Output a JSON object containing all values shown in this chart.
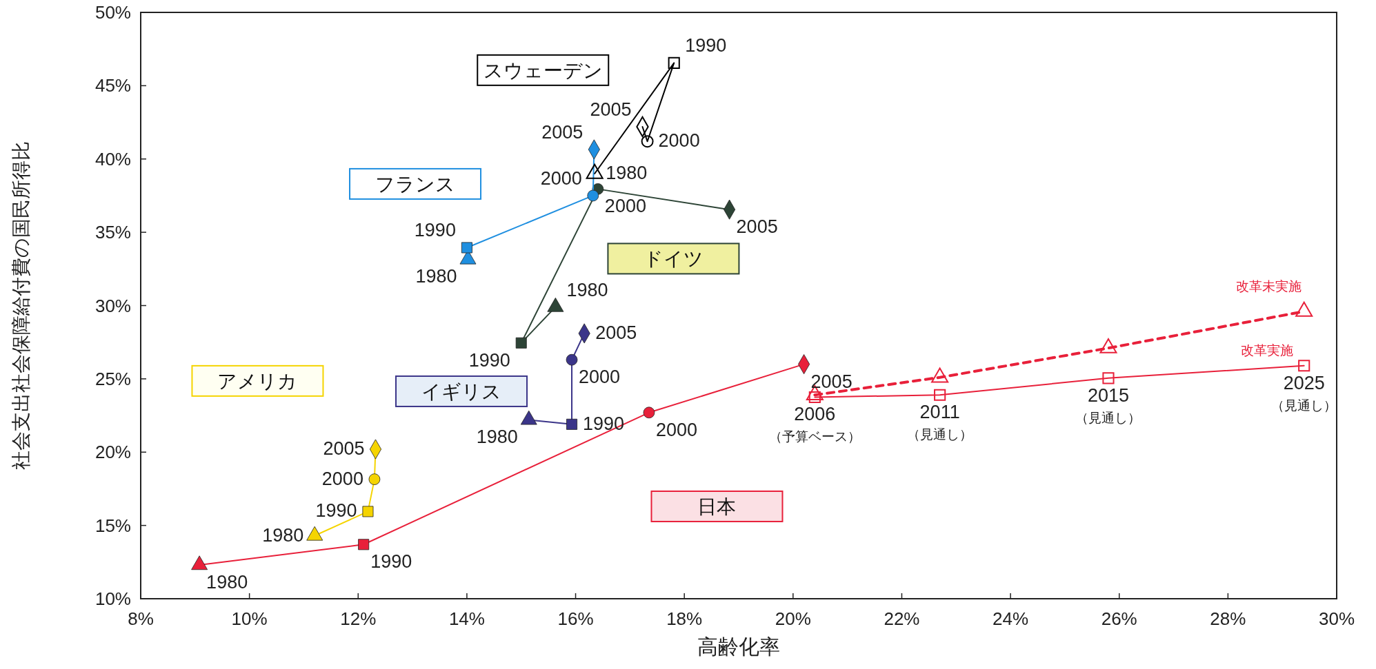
{
  "chart_data": {
    "type": "line",
    "xlabel": "高齢化率",
    "ylabel": "社会支出社会保障給付費の国民所得比",
    "xlim": [
      8,
      30
    ],
    "ylim": [
      10,
      50
    ],
    "xticks": [
      {
        "value": 8,
        "label": "8%"
      },
      {
        "value": 10,
        "label": "10%"
      },
      {
        "value": 12,
        "label": "12%"
      },
      {
        "value": 14,
        "label": "14%"
      },
      {
        "value": 16,
        "label": "16%"
      },
      {
        "value": 18,
        "label": "18%"
      },
      {
        "value": 20,
        "label": "20%"
      },
      {
        "value": 22,
        "label": "22%"
      },
      {
        "value": 24,
        "label": "24%"
      },
      {
        "value": 26,
        "label": "26%"
      },
      {
        "value": 28,
        "label": "28%"
      },
      {
        "value": 30,
        "label": "30%"
      }
    ],
    "yticks": [
      {
        "value": 10,
        "label": "10%"
      },
      {
        "value": 15,
        "label": "15%"
      },
      {
        "value": 20,
        "label": "20%"
      },
      {
        "value": 25,
        "label": "25%"
      },
      {
        "value": 30,
        "label": "30%"
      },
      {
        "value": 35,
        "label": "35%"
      },
      {
        "value": 40,
        "label": "40%"
      },
      {
        "value": 45,
        "label": "45%"
      },
      {
        "value": 50,
        "label": "50%"
      }
    ],
    "grid": false,
    "line_style": "solid",
    "series": [
      {
        "name": "日本",
        "color": "#e8203a",
        "x": [
          9.08,
          12.1,
          17.35,
          20.2
        ],
        "values": [
          12.3,
          13.7,
          22.7,
          26.0
        ],
        "marker": [
          "triangle",
          "square",
          "circle",
          "diamond"
        ]
      },
      {
        "name": "アメリカ",
        "color": "#f5d400",
        "x": [
          11.2,
          12.18,
          12.3,
          12.32
        ],
        "values": [
          14.3,
          15.95,
          18.15,
          20.2
        ],
        "marker": [
          "triangle",
          "square",
          "circle",
          "diamond"
        ]
      },
      {
        "name": "イギリス",
        "color": "#3b3589",
        "x": [
          15.14,
          15.93,
          15.93,
          16.16
        ],
        "values": [
          22.2,
          21.9,
          26.3,
          28.1
        ],
        "marker": [
          "triangle",
          "square",
          "circle",
          "diamond"
        ]
      },
      {
        "name": "ドイツ",
        "color": "#2d4436",
        "x": [
          15.63,
          15.0,
          16.41,
          18.83
        ],
        "values": [
          29.9,
          27.45,
          37.95,
          36.55
        ],
        "marker": [
          "triangle",
          "square",
          "circle",
          "diamond"
        ]
      },
      {
        "name": "フランス",
        "color": "#1f8fe0",
        "x": [
          14.02,
          14.0,
          16.32,
          16.34
        ],
        "values": [
          33.15,
          33.95,
          37.5,
          40.65
        ],
        "marker": [
          "triangle",
          "square",
          "circle",
          "diamond"
        ]
      },
      {
        "name": "スウェーデン",
        "color": "#000000",
        "x": [
          16.35,
          17.81,
          17.32,
          17.23
        ],
        "values": [
          39.0,
          46.55,
          41.2,
          42.2
        ],
        "marker": [
          "triangle",
          "square",
          "circle",
          "diamond"
        ]
      },
      {
        "name": "改革実施",
        "color": "#e8203a",
        "x": [
          20.4,
          22.7,
          25.8,
          29.4
        ],
        "values": [
          23.75,
          23.9,
          25.05,
          25.9
        ],
        "marker": "square"
      },
      {
        "name": "改革未実施",
        "color": "#e8203a",
        "x": [
          20.4,
          22.7,
          25.8,
          29.4
        ],
        "values": [
          23.9,
          25.1,
          27.1,
          29.6
        ],
        "marker": "triangle",
        "line_style": "dashed"
      }
    ],
    "annotations": [
      {
        "text": "1980",
        "x": 9.08,
        "y": 12.3
      },
      {
        "text": "1990",
        "x": 12.1,
        "y": 13.7
      },
      {
        "text": "2000",
        "x": 17.35,
        "y": 22.7
      },
      {
        "text": "2005",
        "x": 20.2,
        "y": 26.0
      },
      {
        "text": "1980",
        "x": 11.2,
        "y": 14.3
      },
      {
        "text": "1990",
        "x": 12.18,
        "y": 15.95
      },
      {
        "text": "2000",
        "x": 12.3,
        "y": 18.15
      },
      {
        "text": "2005",
        "x": 12.32,
        "y": 20.2
      },
      {
        "text": "1980",
        "x": 15.14,
        "y": 22.2
      },
      {
        "text": "1990",
        "x": 15.93,
        "y": 21.9
      },
      {
        "text": "2000",
        "x": 15.93,
        "y": 26.3
      },
      {
        "text": "2005",
        "x": 16.16,
        "y": 28.1
      },
      {
        "text": "1980",
        "x": 15.63,
        "y": 29.9
      },
      {
        "text": "1990",
        "x": 15.0,
        "y": 27.45
      },
      {
        "text": "2000",
        "x": 16.41,
        "y": 37.95
      },
      {
        "text": "2005",
        "x": 18.83,
        "y": 36.55
      },
      {
        "text": "1980",
        "x": 14.02,
        "y": 33.15
      },
      {
        "text": "1990",
        "x": 14.0,
        "y": 33.95
      },
      {
        "text": "2000",
        "x": 16.32,
        "y": 37.5
      },
      {
        "text": "2005",
        "x": 16.34,
        "y": 40.65
      },
      {
        "text": "1980",
        "x": 16.35,
        "y": 39.0
      },
      {
        "text": "1990",
        "x": 17.81,
        "y": 46.55
      },
      {
        "text": "2000",
        "x": 17.32,
        "y": 41.2
      },
      {
        "text": "2005",
        "x": 17.23,
        "y": 42.2
      },
      {
        "text": "2006\n（予算ベース）",
        "x": 20.4,
        "y": 23.75
      },
      {
        "text": "2011\n（見通し）",
        "x": 22.7,
        "y": 23.9
      },
      {
        "text": "2015\n（見通し）",
        "x": 25.8,
        "y": 25.05
      },
      {
        "text": "2025\n（見通し）",
        "x": 29.4,
        "y": 25.9
      }
    ]
  }
}
